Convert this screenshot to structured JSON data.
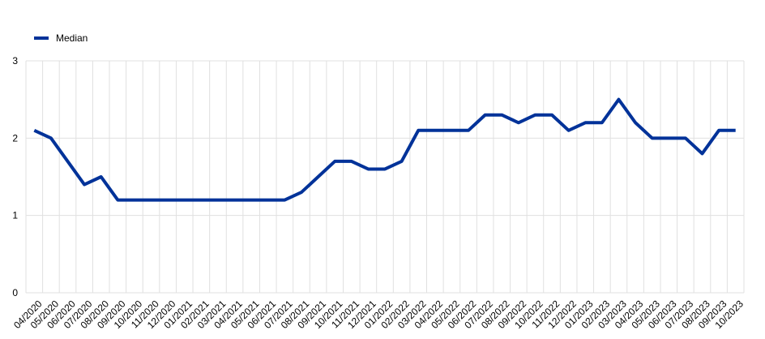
{
  "chart_data": {
    "type": "line",
    "categories": [
      "04/2020",
      "05/2020",
      "06/2020",
      "07/2020",
      "08/2020",
      "09/2020",
      "10/2020",
      "11/2020",
      "12/2020",
      "01/2021",
      "02/2021",
      "03/2021",
      "04/2021",
      "05/2021",
      "06/2021",
      "07/2021",
      "08/2021",
      "09/2021",
      "10/2021",
      "11/2021",
      "12/2021",
      "01/2022",
      "02/2022",
      "03/2022",
      "04/2022",
      "05/2022",
      "06/2022",
      "07/2022",
      "08/2022",
      "09/2022",
      "10/2022",
      "11/2022",
      "12/2022",
      "01/2023",
      "02/2023",
      "03/2023",
      "04/2023",
      "05/2023",
      "06/2023",
      "07/2023",
      "08/2023",
      "09/2023",
      "10/2023"
    ],
    "series": [
      {
        "name": "Median",
        "color": "#003299",
        "values": [
          2.1,
          2.0,
          1.7,
          1.4,
          1.5,
          1.2,
          1.2,
          1.2,
          1.2,
          1.2,
          1.2,
          1.2,
          1.2,
          1.2,
          1.2,
          1.2,
          1.3,
          1.5,
          1.7,
          1.7,
          1.6,
          1.6,
          1.7,
          2.1,
          2.1,
          2.1,
          2.1,
          2.3,
          2.3,
          2.2,
          2.3,
          2.3,
          2.1,
          2.2,
          2.2,
          2.5,
          2.2,
          2.0,
          2.0,
          2.0,
          1.8,
          2.1,
          2.1
        ]
      }
    ],
    "ylim": [
      0,
      3
    ],
    "yticks": [
      0,
      1,
      2,
      3
    ],
    "grid": true,
    "legend": "top-left"
  }
}
